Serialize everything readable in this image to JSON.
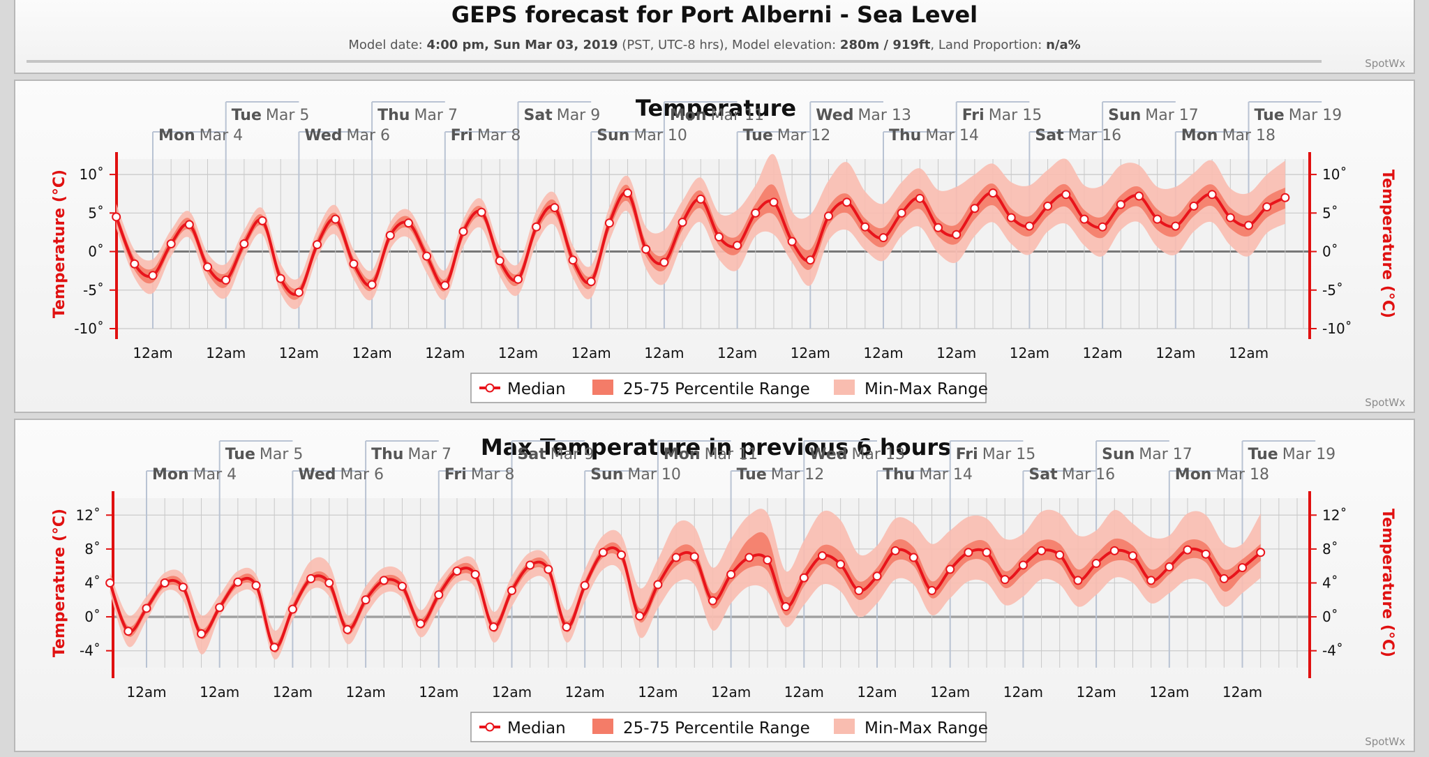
{
  "header": {
    "title": "GEPS forecast for Port Alberni - Sea Level",
    "subtitle_prefix": "Model date: ",
    "model_date": "4:00 pm, Sun Mar 03, 2019",
    "subtitle_mid1": " (PST, UTC-8 hrs), Model elevation: ",
    "elevation": "280m / 919ft",
    "subtitle_mid2": ", Land Proportion: ",
    "land_proportion": "n/a%",
    "credit": "SpotWx"
  },
  "colors": {
    "median": "#e8141b",
    "pct_25_75": "#f47c68",
    "min_max": "#f9bdb0",
    "axis": "#e01010",
    "grid_day": "#b9c3d3",
    "grid_6h": "#c8c8c8"
  },
  "days_top_row": [
    {
      "dow": "Tue",
      "date": "Mar 5"
    },
    {
      "dow": "Thu",
      "date": "Mar 7"
    },
    {
      "dow": "Sat",
      "date": "Mar 9"
    },
    {
      "dow": "Mon",
      "date": "Mar 11"
    },
    {
      "dow": "Wed",
      "date": "Mar 13"
    },
    {
      "dow": "Fri",
      "date": "Mar 15"
    },
    {
      "dow": "Sun",
      "date": "Mar 17"
    },
    {
      "dow": "Tue",
      "date": "Mar 19"
    }
  ],
  "days_bottom_row": [
    {
      "dow": "Mon",
      "date": "Mar 4"
    },
    {
      "dow": "Wed",
      "date": "Mar 6"
    },
    {
      "dow": "Fri",
      "date": "Mar 8"
    },
    {
      "dow": "Sun",
      "date": "Mar 10"
    },
    {
      "dow": "Tue",
      "date": "Mar 12"
    },
    {
      "dow": "Thu",
      "date": "Mar 14"
    },
    {
      "dow": "Sat",
      "date": "Mar 16"
    },
    {
      "dow": "Mon",
      "date": "Mar 18"
    }
  ],
  "x_tick_label": "12am",
  "legend": {
    "median": "Median",
    "pct": "25-75 Percentile Range",
    "minmax": "Min-Max Range"
  },
  "chart_data": [
    {
      "type": "line",
      "title": "Temperature",
      "ylabel": "Temperature (°C)",
      "ylim": [
        -10,
        12
      ],
      "yticks": [
        -10,
        -5,
        0,
        5,
        10
      ],
      "ytick_labels": [
        "-10˚",
        "-5˚",
        "0˚",
        "5˚",
        "10˚"
      ],
      "ytick_labels_left": [
        "-10˚",
        "-5˚",
        "0˚",
        "5˚",
        "10˚"
      ],
      "x_start": "Sun Mar 03 4:00 pm",
      "x_step_hours": 6,
      "series": [
        {
          "name": "Median",
          "values": [
            4.5,
            -1.6,
            -3.1,
            1.0,
            3.5,
            -2.0,
            -3.7,
            1.0,
            4.0,
            -3.5,
            -5.3,
            0.9,
            4.2,
            -1.6,
            -4.3,
            2.1,
            3.7,
            -0.6,
            -4.4,
            2.6,
            5.1,
            -1.2,
            -3.6,
            3.2,
            5.7,
            -1.1,
            -3.9,
            3.7,
            7.6,
            0.3,
            -1.4,
            3.8,
            6.8,
            1.9,
            0.8,
            5.0,
            6.4,
            1.3,
            -1.1,
            4.6,
            6.4,
            3.2,
            1.8,
            5.0,
            6.9,
            3.1,
            2.2,
            5.6,
            7.6,
            4.4,
            3.3,
            5.9,
            7.4,
            4.2,
            3.2,
            6.1,
            7.2,
            4.2,
            3.3,
            5.9,
            7.4,
            4.4,
            3.4,
            5.8,
            7.0
          ]
        },
        {
          "name": "25-75 Percentile Range",
          "lower": [
            3.8,
            -2.4,
            -4.0,
            0.4,
            2.8,
            -2.8,
            -4.6,
            0.3,
            3.3,
            -4.3,
            -6.0,
            0.2,
            3.4,
            -2.4,
            -5.0,
            1.4,
            3.0,
            -1.4,
            -5.1,
            1.8,
            4.4,
            -2.0,
            -4.3,
            2.4,
            4.8,
            -2.0,
            -4.7,
            2.8,
            6.5,
            -0.6,
            -2.4,
            2.8,
            5.6,
            0.8,
            -0.3,
            3.8,
            4.8,
            0.2,
            -2.3,
            3.4,
            5.0,
            2.0,
            0.6,
            3.8,
            5.5,
            2.0,
            1.0,
            4.2,
            6.0,
            3.2,
            2.0,
            4.6,
            5.8,
            3.0,
            1.8,
            4.8,
            5.8,
            2.8,
            2.0,
            4.6,
            5.9,
            3.0,
            2.0,
            4.4,
            5.6
          ],
          "upper": [
            5.2,
            -0.8,
            -2.2,
            1.8,
            4.3,
            -1.2,
            -2.8,
            1.8,
            4.7,
            -2.7,
            -4.6,
            1.7,
            5.0,
            -0.8,
            -3.5,
            2.8,
            4.5,
            0.2,
            -3.6,
            3.3,
            5.8,
            -0.4,
            -2.8,
            4.0,
            6.6,
            -0.2,
            -3.1,
            4.6,
            8.6,
            1.3,
            -0.4,
            4.9,
            7.9,
            3.0,
            2.0,
            6.2,
            8.6,
            2.5,
            0.3,
            5.8,
            7.5,
            4.3,
            3.1,
            6.3,
            8.1,
            4.3,
            3.5,
            6.9,
            8.8,
            5.6,
            4.6,
            7.2,
            8.7,
            5.4,
            4.5,
            7.3,
            8.4,
            5.5,
            4.6,
            7.2,
            8.7,
            5.7,
            4.7,
            7.1,
            8.3
          ]
        },
        {
          "name": "Min-Max Range",
          "lower": [
            3.0,
            -3.4,
            -5.4,
            -0.6,
            1.8,
            -4.0,
            -6.0,
            -0.8,
            2.2,
            -5.4,
            -7.2,
            -0.8,
            2.2,
            -3.6,
            -6.2,
            0.3,
            1.8,
            -2.8,
            -6.2,
            0.6,
            3.0,
            -3.2,
            -5.6,
            1.0,
            3.4,
            -3.4,
            -6.0,
            1.4,
            5.2,
            -2.2,
            -4.2,
            1.0,
            3.8,
            -1.0,
            -2.4,
            2.0,
            2.2,
            -1.4,
            -4.4,
            1.4,
            2.8,
            0.2,
            -1.2,
            2.0,
            3.2,
            -0.2,
            -1.4,
            2.0,
            3.8,
            1.0,
            -0.4,
            2.6,
            3.6,
            0.8,
            -0.6,
            2.8,
            3.8,
            0.6,
            -0.4,
            2.6,
            3.8,
            0.8,
            -0.6,
            2.4,
            3.6
          ],
          "upper": [
            6.2,
            0.2,
            -1.0,
            2.8,
            5.2,
            -0.2,
            -1.6,
            2.8,
            5.6,
            -1.6,
            -3.4,
            2.8,
            6.0,
            0.2,
            -2.4,
            3.8,
            5.4,
            1.2,
            -2.4,
            4.2,
            6.8,
            0.6,
            -1.6,
            5.2,
            7.6,
            0.8,
            -1.8,
            5.8,
            9.8,
            3.2,
            2.8,
            6.6,
            9.6,
            5.0,
            5.4,
            8.6,
            12.6,
            5.2,
            4.8,
            9.2,
            11.6,
            7.8,
            6.2,
            9.0,
            10.8,
            8.0,
            8.4,
            10.0,
            11.4,
            9.0,
            8.6,
            10.6,
            12.0,
            8.6,
            8.6,
            11.2,
            11.2,
            8.4,
            8.4,
            10.2,
            11.8,
            8.2,
            7.6,
            10.0,
            11.8
          ]
        }
      ]
    },
    {
      "type": "line",
      "title": "Max Temperature in previous 6 hours",
      "ylabel": "Temperature (°C)",
      "ylim": [
        -6,
        14
      ],
      "yticks": [
        -4,
        0,
        4,
        8,
        12
      ],
      "ytick_labels": [
        "-4˚",
        "0˚",
        "4˚",
        "8˚",
        "12˚"
      ],
      "x_start": "Sun Mar 03 10:00 pm",
      "x_step_hours": 6,
      "series": [
        {
          "name": "Median",
          "values": [
            4.0,
            -1.7,
            1.0,
            4.0,
            3.5,
            -2.0,
            1.1,
            4.1,
            3.7,
            -3.6,
            0.9,
            4.5,
            4.0,
            -1.5,
            2.0,
            4.3,
            3.6,
            -0.8,
            2.6,
            5.4,
            5.0,
            -1.2,
            3.1,
            6.1,
            5.6,
            -1.2,
            3.7,
            7.6,
            7.3,
            0.1,
            3.8,
            7.0,
            7.1,
            1.9,
            5.0,
            7.0,
            6.7,
            1.2,
            4.6,
            7.2,
            6.2,
            3.1,
            4.8,
            7.8,
            7.0,
            3.1,
            5.6,
            7.6,
            7.6,
            4.4,
            6.1,
            7.8,
            7.3,
            4.3,
            6.3,
            7.8,
            7.2,
            4.3,
            5.9,
            7.9,
            7.4,
            4.5,
            5.8,
            7.6
          ]
        },
        {
          "name": "25-75 Percentile Range",
          "lower": [
            3.5,
            -2.3,
            0.5,
            3.5,
            3.0,
            -2.6,
            0.6,
            3.6,
            3.2,
            -4.2,
            0.4,
            4.0,
            3.3,
            -2.1,
            1.4,
            3.7,
            3.0,
            -1.4,
            2.0,
            4.8,
            4.4,
            -1.8,
            2.5,
            5.5,
            5.0,
            -1.8,
            3.1,
            7.0,
            6.6,
            -0.6,
            3.0,
            6.0,
            6.2,
            1.0,
            4.0,
            5.8,
            5.4,
            0.2,
            3.6,
            6.2,
            5.0,
            2.0,
            3.8,
            6.6,
            6.0,
            2.2,
            4.4,
            6.6,
            6.4,
            3.4,
            5.0,
            6.6,
            6.2,
            3.2,
            5.2,
            6.6,
            6.2,
            3.4,
            5.0,
            6.8,
            6.4,
            3.0,
            4.8,
            6.6
          ],
          "upper": [
            4.5,
            -1.1,
            1.5,
            4.5,
            4.1,
            -1.4,
            1.6,
            4.6,
            4.3,
            -3.0,
            1.5,
            5.0,
            4.6,
            -0.9,
            2.5,
            4.8,
            4.2,
            -0.2,
            3.2,
            6.0,
            5.6,
            -0.6,
            3.7,
            6.6,
            6.2,
            -0.5,
            4.3,
            8.2,
            8.0,
            1.0,
            4.6,
            8.0,
            8.0,
            2.8,
            6.0,
            9.2,
            9.4,
            2.4,
            5.6,
            8.4,
            7.6,
            4.2,
            5.8,
            9.0,
            8.2,
            4.2,
            6.6,
            8.6,
            8.8,
            5.4,
            7.2,
            9.0,
            8.6,
            5.6,
            7.4,
            9.2,
            8.4,
            5.6,
            7.0,
            9.0,
            8.6,
            5.6,
            6.8,
            8.6
          ]
        },
        {
          "name": "Min-Max Range",
          "lower": [
            2.8,
            -3.5,
            -0.4,
            3.0,
            2.0,
            -4.4,
            0.0,
            2.8,
            2.4,
            -5.0,
            -0.4,
            3.2,
            2.4,
            -3.2,
            0.2,
            2.8,
            2.2,
            -2.4,
            0.8,
            4.0,
            3.4,
            -3.0,
            1.2,
            4.4,
            4.0,
            -3.0,
            1.8,
            5.6,
            5.2,
            -2.4,
            1.0,
            4.0,
            3.8,
            -1.6,
            1.6,
            3.6,
            3.0,
            -1.2,
            1.4,
            3.8,
            3.0,
            0.0,
            1.6,
            4.4,
            3.8,
            0.2,
            2.2,
            4.2,
            4.0,
            1.4,
            2.4,
            4.4,
            3.8,
            1.2,
            2.6,
            4.6,
            4.0,
            1.6,
            2.8,
            4.4,
            4.0,
            1.2,
            2.8,
            4.6
          ],
          "upper": [
            5.2,
            0.2,
            2.4,
            5.2,
            5.0,
            0.2,
            2.6,
            5.4,
            5.0,
            -1.6,
            2.6,
            6.6,
            6.2,
            0.2,
            3.6,
            5.8,
            5.2,
            0.8,
            4.2,
            6.6,
            6.6,
            0.6,
            4.8,
            7.6,
            7.0,
            0.8,
            5.6,
            9.6,
            9.6,
            3.4,
            6.8,
            11.0,
            10.6,
            5.8,
            9.2,
            12.0,
            12.2,
            5.4,
            9.0,
            12.4,
            11.4,
            7.4,
            8.4,
            11.6,
            11.0,
            8.6,
            10.2,
            11.8,
            11.6,
            9.2,
            9.8,
            12.4,
            12.2,
            9.6,
            10.2,
            12.6,
            11.0,
            9.4,
            9.6,
            12.2,
            12.0,
            8.6,
            8.6,
            12.2
          ]
        }
      ]
    }
  ]
}
